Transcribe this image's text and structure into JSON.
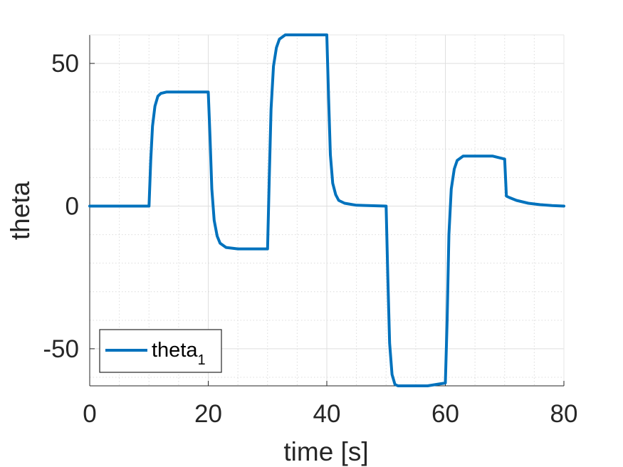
{
  "chart_data": {
    "type": "line",
    "title": "",
    "xlabel": "time [s]",
    "ylabel": "theta",
    "xlim": [
      0,
      80
    ],
    "ylim": [
      -63,
      60
    ],
    "xticks": [
      0,
      20,
      40,
      60,
      80
    ],
    "yticks": [
      -50,
      0,
      50
    ],
    "xtick_labels": [
      "0",
      "20",
      "40",
      "60",
      "80"
    ],
    "ytick_labels": [
      "-50",
      "0",
      "50"
    ],
    "grid": true,
    "minor_grid": true,
    "legend": {
      "placement": "bottom-left",
      "entries": [
        "theta_1"
      ],
      "label": "theta",
      "subscript": "1"
    },
    "series": [
      {
        "name": "theta_1",
        "color": "#0072bd",
        "x": [
          0,
          10,
          10.3,
          10.6,
          11,
          11.5,
          12,
          13,
          15,
          20,
          20.3,
          20.6,
          21,
          21.5,
          22,
          23,
          25,
          30,
          30.3,
          30.6,
          31,
          31.5,
          32,
          33,
          35,
          40,
          40.3,
          40.6,
          41,
          41.5,
          42,
          43,
          45,
          50,
          50.3,
          50.6,
          51,
          51.5,
          52,
          53,
          55,
          57,
          60,
          60.3,
          60.6,
          61,
          61.5,
          62,
          63,
          65,
          68,
          70,
          70.3,
          70.8,
          72,
          74,
          76,
          78,
          80
        ],
        "y": [
          0,
          0,
          16,
          28,
          35,
          38.5,
          39.5,
          40,
          40,
          40,
          24,
          6,
          -5,
          -10.5,
          -13,
          -14.5,
          -15,
          -15,
          10,
          34,
          49,
          55.5,
          58.5,
          60,
          60,
          60,
          38,
          18,
          8,
          4,
          2,
          1,
          0.3,
          0,
          -25,
          -48,
          -59,
          -62.5,
          -63,
          -63,
          -63,
          -63,
          -62,
          -40,
          -10,
          6,
          13,
          16,
          17.5,
          17.5,
          17.5,
          16.5,
          3.5,
          3,
          2,
          1,
          0.5,
          0.2,
          0
        ]
      }
    ]
  }
}
